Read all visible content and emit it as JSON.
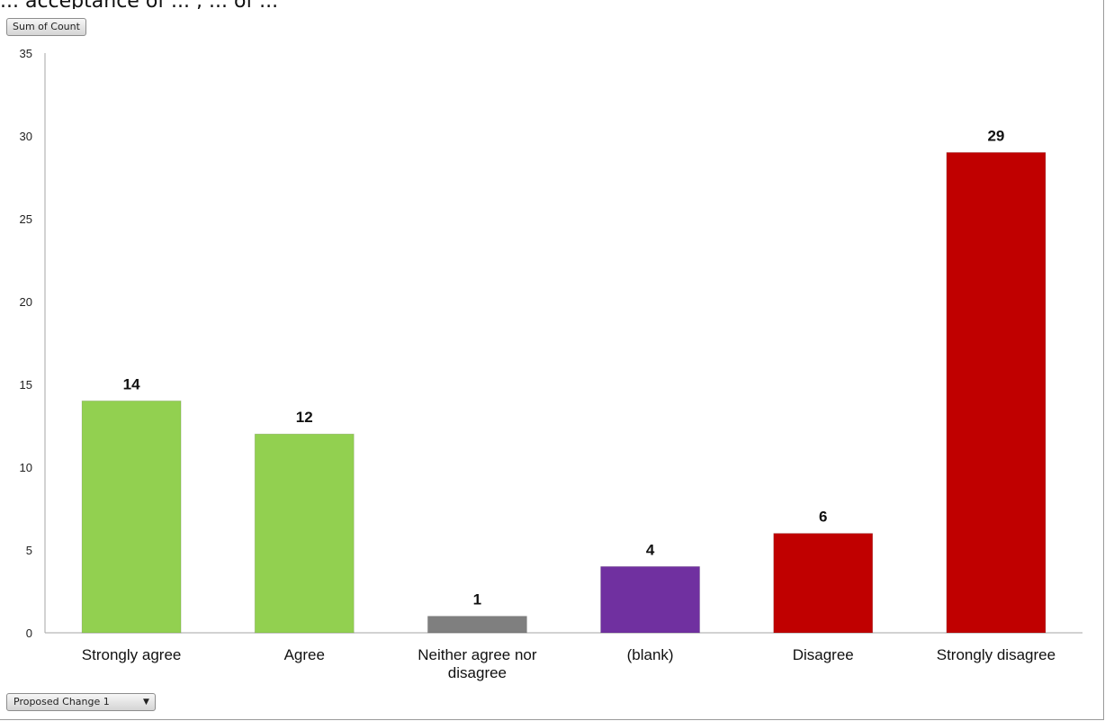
{
  "header_text": "... acceptance of ... , ... of ... ",
  "field_button_label": "Sum of Count",
  "filter": {
    "label": "Proposed Change 1",
    "arrow": "▼"
  },
  "colors": {
    "green": "#92d050",
    "gray": "#7f7f7f",
    "purple": "#7030a0",
    "red": "#c00000"
  },
  "chart_data": {
    "type": "bar",
    "categories": [
      "Strongly agree",
      "Agree",
      "Neither agree nor disagree",
      "(blank)",
      "Disagree",
      "Strongly disagree"
    ],
    "category_lines": [
      [
        "Strongly agree"
      ],
      [
        "Agree"
      ],
      [
        "Neither agree nor",
        "disagree"
      ],
      [
        "(blank)"
      ],
      [
        "Disagree"
      ],
      [
        "Strongly disagree"
      ]
    ],
    "values": [
      14,
      12,
      1,
      4,
      6,
      29
    ],
    "bar_colors": [
      "#92d050",
      "#92d050",
      "#7f7f7f",
      "#7030a0",
      "#c00000",
      "#c00000"
    ],
    "ylim": [
      0,
      35
    ],
    "yticks": [
      0,
      5,
      10,
      15,
      20,
      25,
      30,
      35
    ],
    "title": "",
    "xlabel": "",
    "ylabel": "",
    "grid": false,
    "legend": "none"
  }
}
